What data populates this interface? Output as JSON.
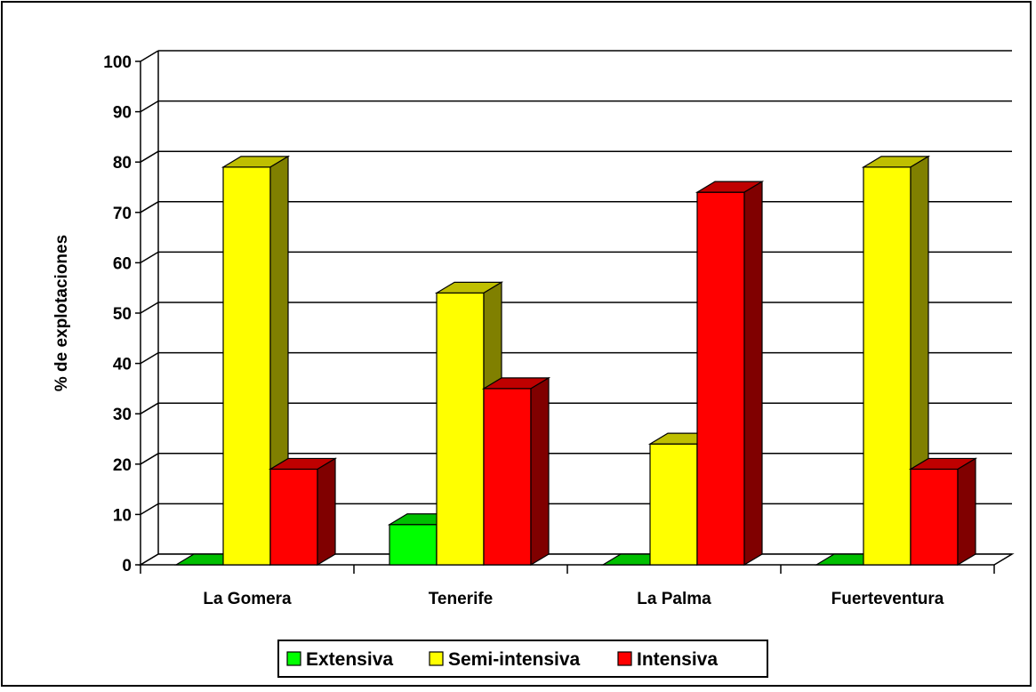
{
  "chart_data": {
    "type": "bar",
    "style": "3d-clustered",
    "ylabel": "% de explotaciones",
    "xlabel": "",
    "ylim": [
      0,
      100
    ],
    "yticks": [
      "0",
      "10",
      "20",
      "30",
      "40",
      "50",
      "60",
      "70",
      "80",
      "90",
      "100"
    ],
    "categories": [
      "La Gomera",
      "Tenerife",
      "La Palma",
      "Fuerteventura"
    ],
    "series": [
      {
        "name": "Extensiva",
        "color": "#00ff00",
        "values": [
          0,
          8,
          0,
          0
        ]
      },
      {
        "name": "Semi-intensiva",
        "color": "#ffff00",
        "values": [
          79,
          54,
          24,
          79
        ]
      },
      {
        "name": "Intensiva",
        "color": "#ff0000",
        "values": [
          19,
          35,
          74,
          19
        ]
      }
    ],
    "grid": true,
    "legend_position": "bottom"
  }
}
